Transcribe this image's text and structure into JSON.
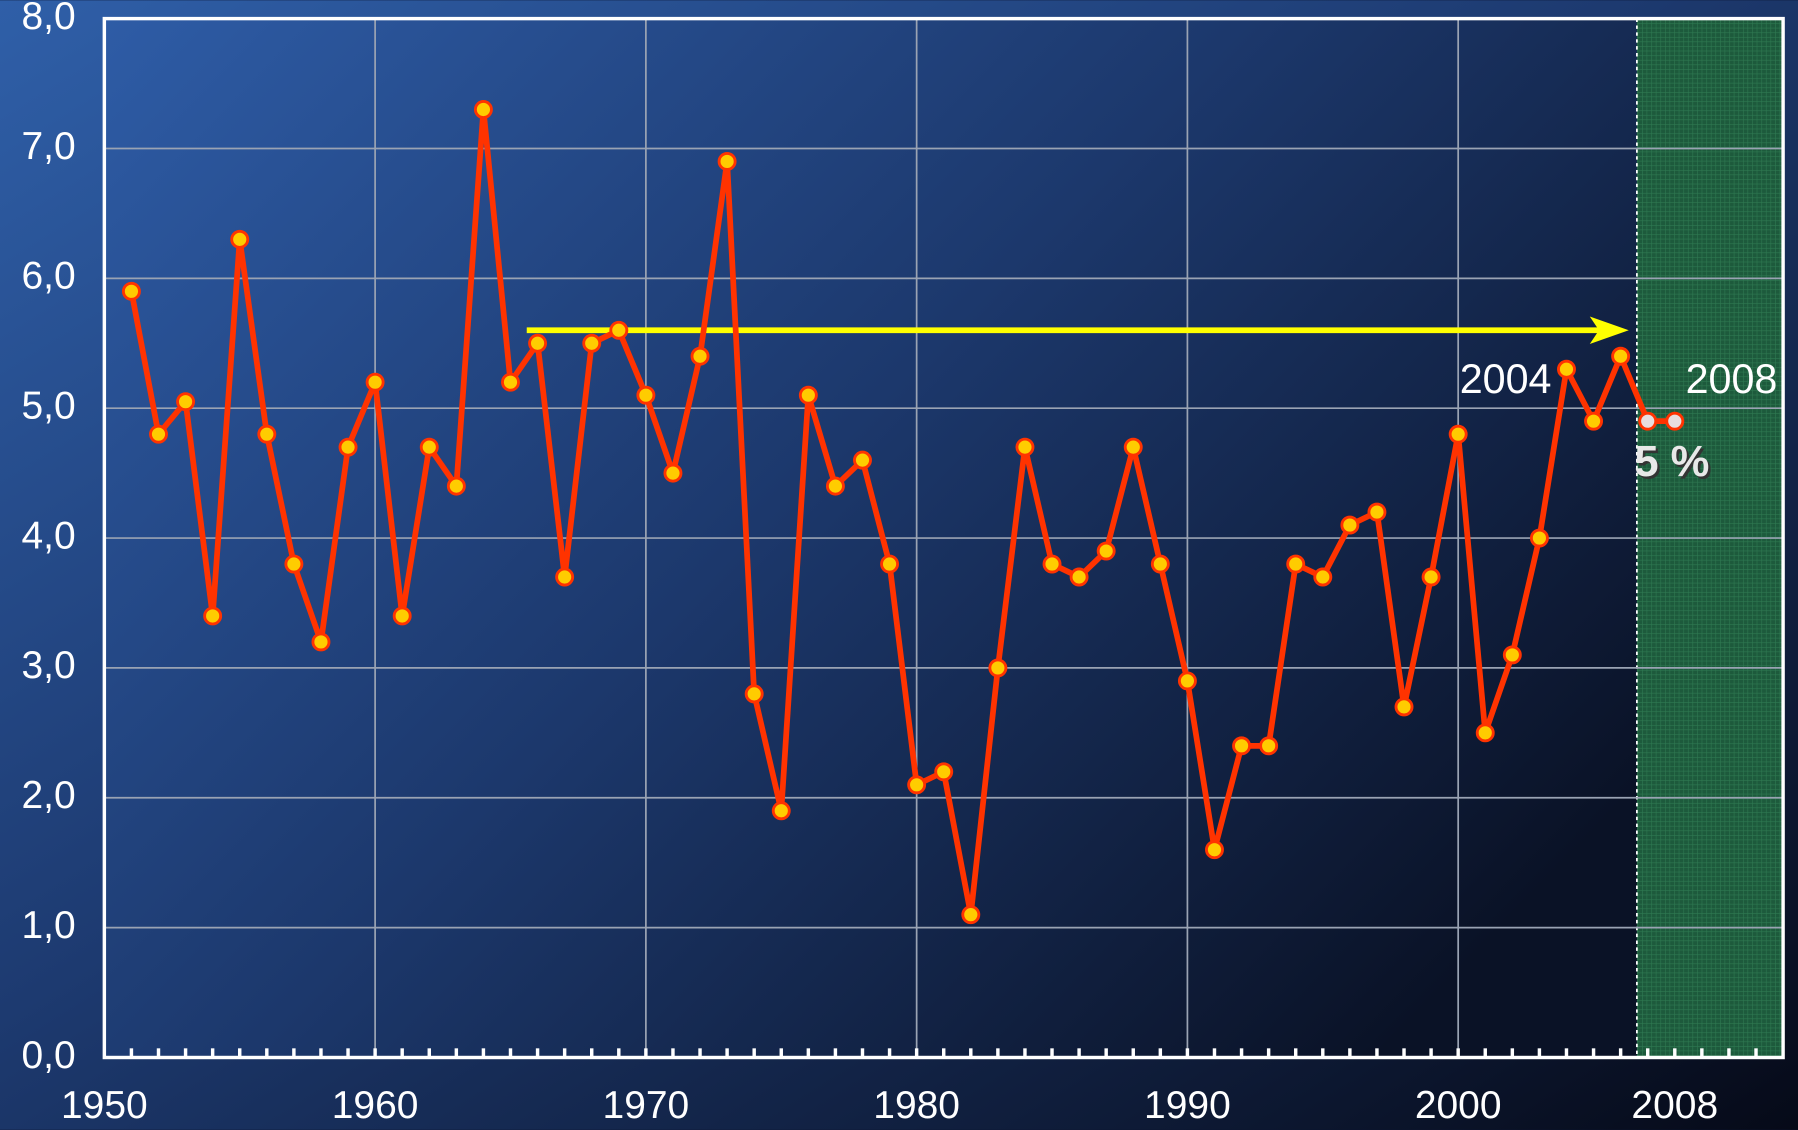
{
  "chart_data": {
    "type": "line",
    "x": [
      1951,
      1952,
      1953,
      1954,
      1955,
      1956,
      1957,
      1958,
      1959,
      1960,
      1961,
      1962,
      1963,
      1964,
      1965,
      1966,
      1967,
      1968,
      1969,
      1970,
      1971,
      1972,
      1973,
      1974,
      1975,
      1976,
      1977,
      1978,
      1979,
      1980,
      1981,
      1982,
      1983,
      1984,
      1985,
      1986,
      1987,
      1988,
      1989,
      1990,
      1991,
      1992,
      1993,
      1994,
      1995,
      1996,
      1997,
      1998,
      1999,
      2000,
      2001,
      2002,
      2003,
      2004,
      2005,
      2006,
      2007,
      2008
    ],
    "series": [
      {
        "color": "#ff3300",
        "marker_color": "#ffcc00",
        "forecast_marker_color": "#e8dede",
        "forecast_count": 2,
        "values": [
          5.9,
          4.8,
          5.05,
          3.4,
          6.3,
          4.8,
          3.8,
          3.2,
          4.7,
          5.2,
          3.4,
          4.7,
          4.4,
          7.3,
          5.2,
          5.5,
          3.7,
          5.5,
          5.6,
          5.1,
          4.5,
          5.4,
          6.9,
          2.8,
          1.9,
          5.1,
          4.4,
          4.6,
          3.8,
          2.1,
          2.2,
          1.1,
          3.0,
          4.7,
          3.8,
          3.7,
          3.9,
          4.7,
          3.8,
          2.9,
          1.6,
          2.4,
          2.4,
          3.8,
          3.7,
          4.1,
          4.2,
          2.7,
          3.7,
          4.8,
          2.5,
          3.1,
          4.0,
          5.3,
          4.9,
          5.4,
          4.9,
          4.9
        ]
      }
    ],
    "xlim": [
      1950,
      2012
    ],
    "xticks": [
      1950,
      1960,
      1970,
      1980,
      1990,
      2000,
      2008
    ],
    "x_minor_step": 1,
    "ylim": [
      0,
      8
    ],
    "yticks": [
      {
        "value": 0,
        "label": "0,0"
      },
      {
        "value": 1,
        "label": "1,0"
      },
      {
        "value": 2,
        "label": "2,0"
      },
      {
        "value": 3,
        "label": "3,0"
      },
      {
        "value": 4,
        "label": "4,0"
      },
      {
        "value": 5,
        "label": "5,0"
      },
      {
        "value": 6,
        "label": "6,0"
      },
      {
        "value": 7,
        "label": "7,0"
      },
      {
        "value": 8,
        "label": "8,0"
      }
    ],
    "grid": true,
    "shaded_region": {
      "xlim": [
        2006.6,
        2012
      ],
      "color": "#1d5a3c"
    },
    "arrow": {
      "x": [
        1965.6,
        2006.3
      ],
      "y": 5.6,
      "color": "#ffff00"
    },
    "annotations": [
      "2004",
      "2008",
      "5 %"
    ]
  }
}
